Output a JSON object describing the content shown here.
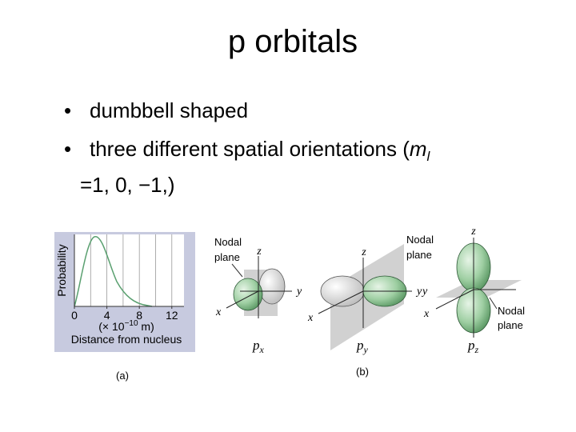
{
  "title": "p orbitals",
  "bullets": [
    {
      "text": "dumbbell shaped"
    },
    {
      "text": "three different spatial orientations (",
      "var": "m",
      "sub": "l",
      "rest": "=1, 0, −1,)"
    }
  ],
  "figure_a": {
    "chart_data": {
      "type": "line",
      "ylabel": "Probability",
      "xlim": [
        0,
        13.5
      ],
      "xticks": [
        0,
        4,
        8,
        12
      ],
      "xgrid": [
        0,
        2,
        4,
        6,
        8,
        10,
        12
      ],
      "grid": true,
      "xlabel_unit": "(× 10",
      "xlabel_exp": "−10",
      "xlabel_unit_end": " m)",
      "xlabel": "Distance from nucleus"
    },
    "caption": "(a)"
  },
  "figure_b": {
    "nodal_label": [
      "Nodal",
      "plane"
    ],
    "axes": {
      "x": "x",
      "y": "y",
      "z": "z"
    },
    "orbitals": [
      {
        "p": "p",
        "sub": "x"
      },
      {
        "p": "p",
        "sub": "y"
      },
      {
        "p": "p",
        "sub": "z"
      }
    ],
    "caption": "(b)"
  }
}
